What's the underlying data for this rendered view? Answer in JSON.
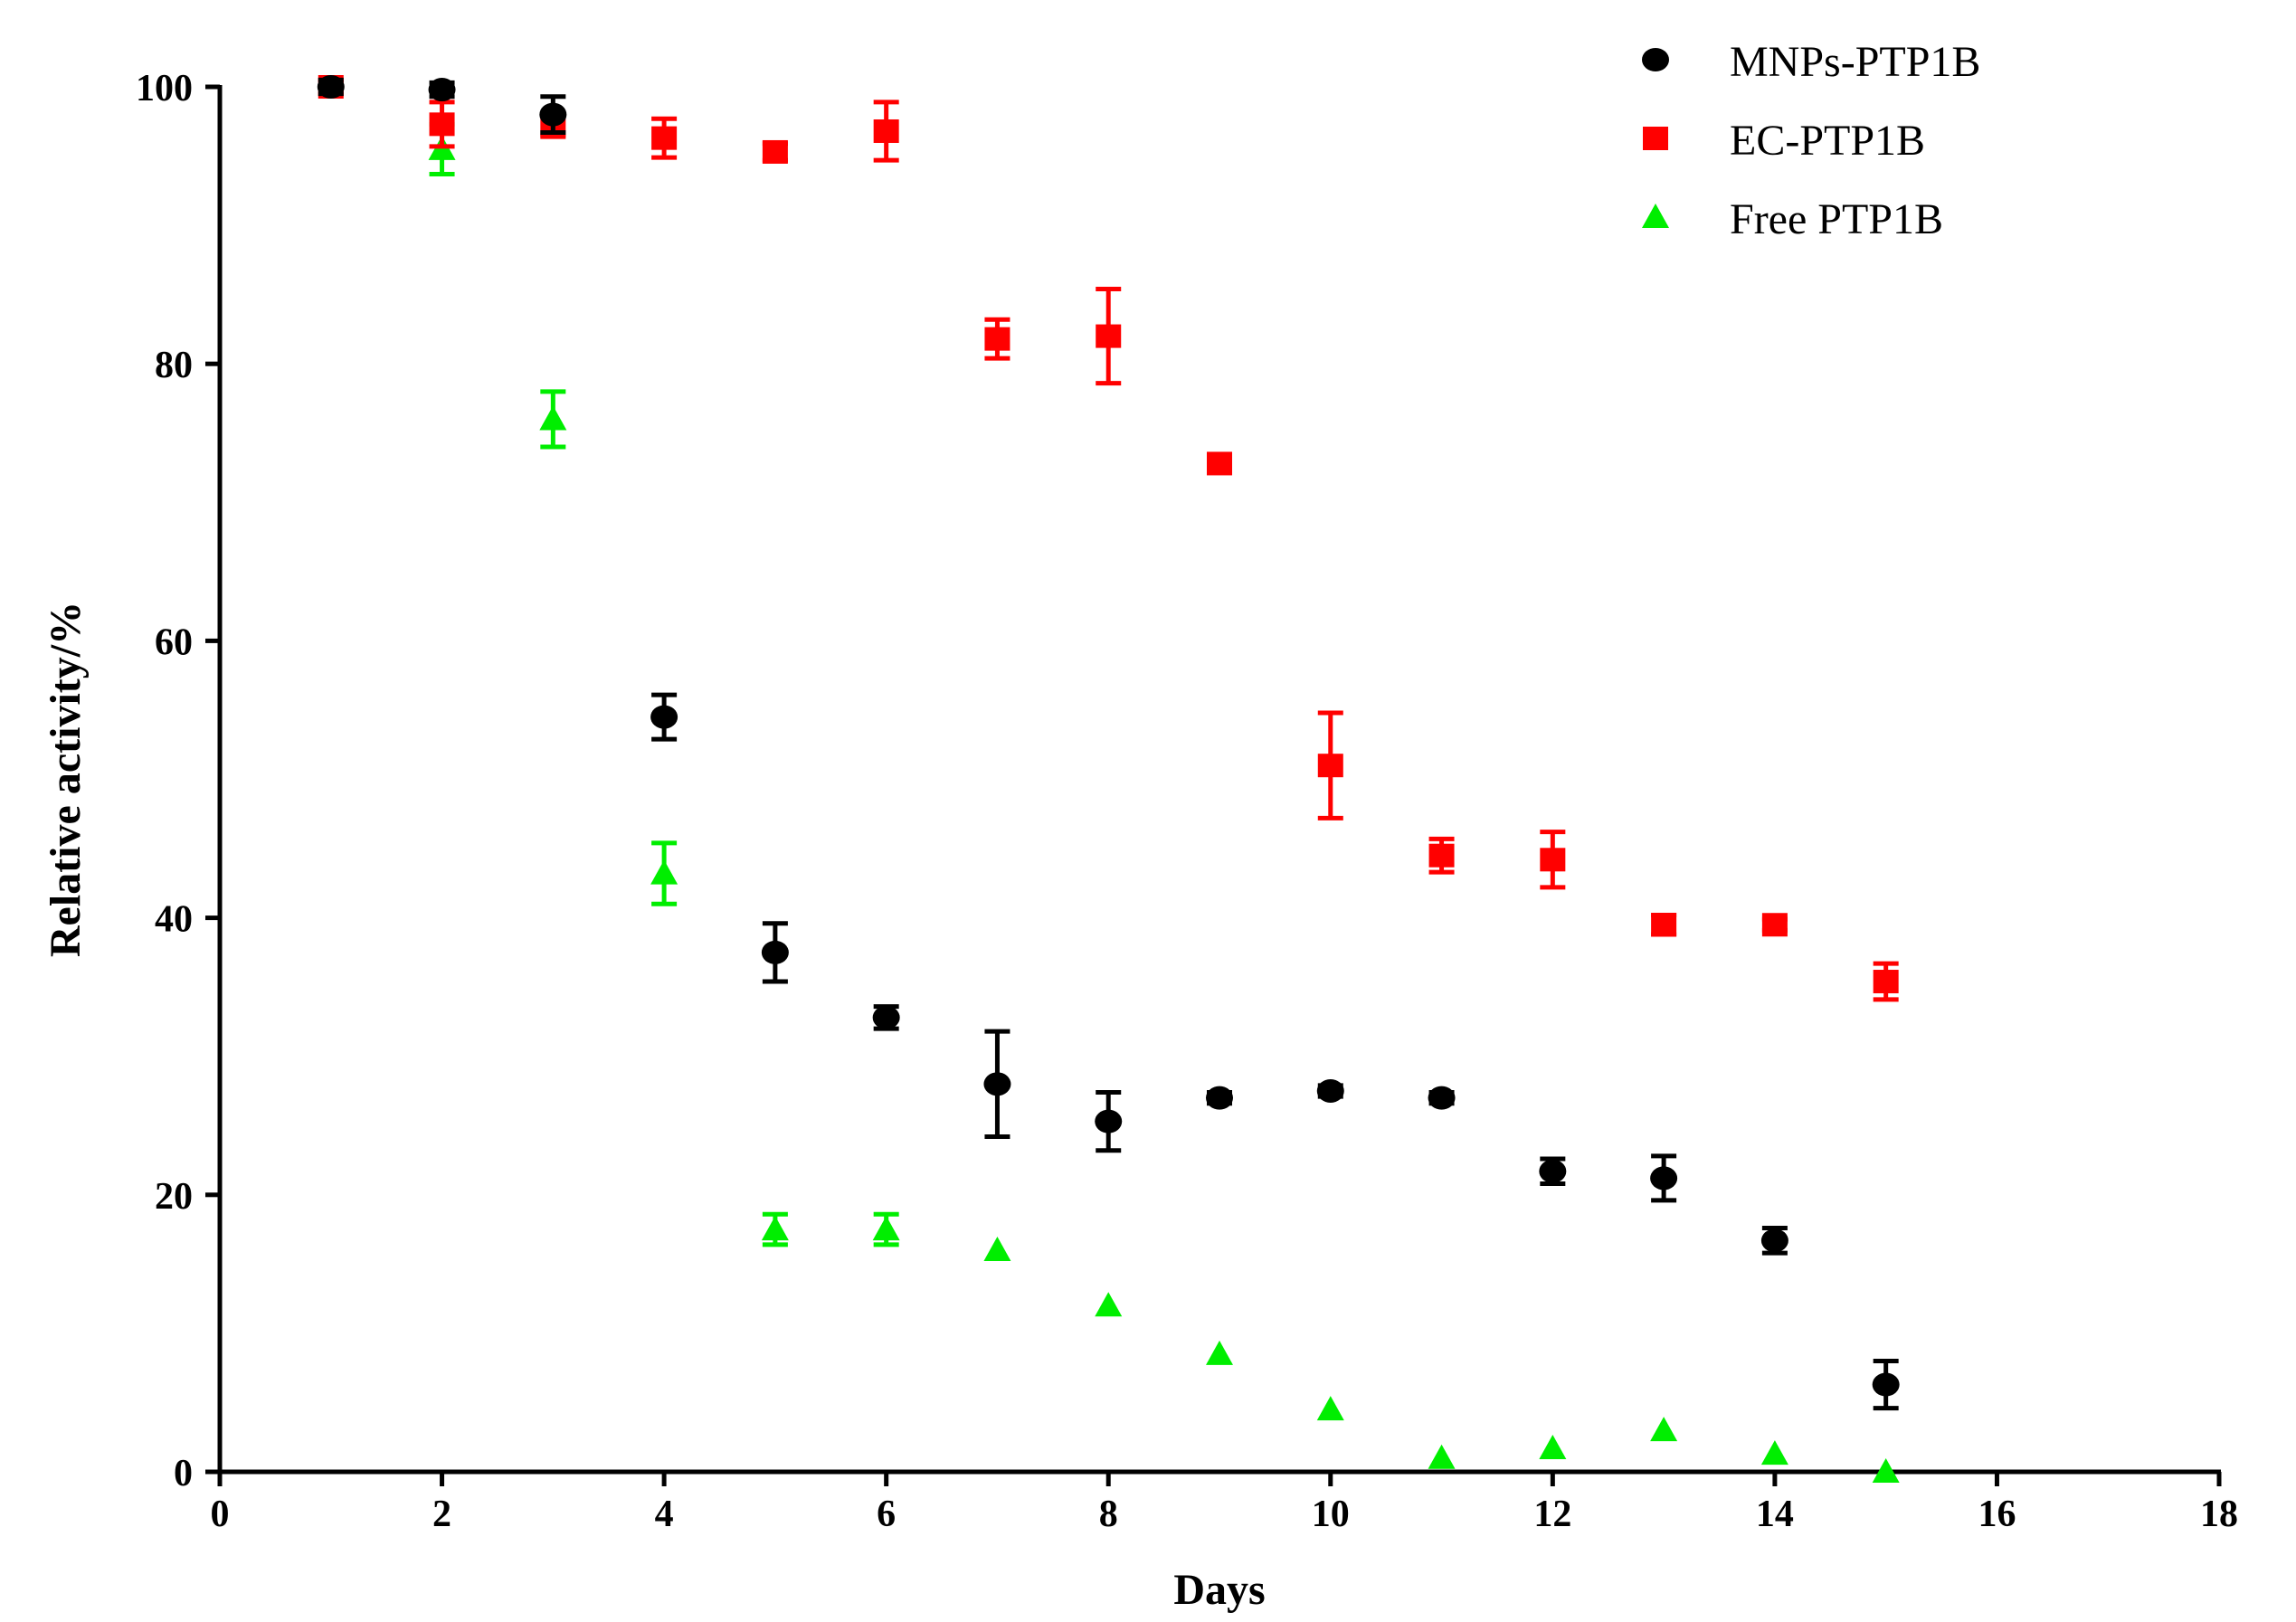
{
  "chart_data": {
    "type": "scatter",
    "title": "",
    "xlabel": "Days",
    "ylabel": "Relative activity/%",
    "xlim": [
      0,
      18
    ],
    "ylim": [
      0,
      100
    ],
    "xticks": [
      0,
      2,
      4,
      6,
      8,
      10,
      12,
      14,
      16,
      18
    ],
    "yticks": [
      0,
      20,
      40,
      60,
      80,
      100
    ],
    "xtick_labels": [
      "0",
      "2",
      "4",
      "6",
      "8",
      "10",
      "12",
      "14",
      "16",
      "18"
    ],
    "ytick_labels": [
      "0",
      "20",
      "40",
      "60",
      "80",
      "100"
    ],
    "grid": false,
    "legend_position": "top-right",
    "series": [
      {
        "name": "MNPs-PTP1B",
        "marker": "circle",
        "color": "#000000",
        "points": [
          {
            "x": 1,
            "y": 100,
            "err": 0.5
          },
          {
            "x": 2,
            "y": 99.8,
            "err": 0.5
          },
          {
            "x": 3,
            "y": 98,
            "err": 1.3
          },
          {
            "x": 4,
            "y": 54.5,
            "err": 1.6
          },
          {
            "x": 5,
            "y": 37.5,
            "err": 2.1
          },
          {
            "x": 6,
            "y": 32.8,
            "err": 0.8
          },
          {
            "x": 7,
            "y": 28,
            "err": 3.8
          },
          {
            "x": 8,
            "y": 25.3,
            "err": 2.1
          },
          {
            "x": 9,
            "y": 27,
            "err": 0.4
          },
          {
            "x": 10,
            "y": 27.5,
            "err": 0.4
          },
          {
            "x": 11,
            "y": 27,
            "err": 0.4
          },
          {
            "x": 12,
            "y": 21.7,
            "err": 0.9
          },
          {
            "x": 13,
            "y": 21.2,
            "err": 1.6
          },
          {
            "x": 14,
            "y": 16.7,
            "err": 0.9
          },
          {
            "x": 15,
            "y": 6.3,
            "err": 1.7
          }
        ]
      },
      {
        "name": "EC-PTP1B",
        "marker": "square",
        "color": "#ff0000",
        "points": [
          {
            "x": 1,
            "y": 100,
            "err": 0.5
          },
          {
            "x": 2,
            "y": 97.3,
            "err": 1.6
          },
          {
            "x": 3,
            "y": 97.2,
            "err": 0.8
          },
          {
            "x": 4,
            "y": 96.3,
            "err": 1.4
          },
          {
            "x": 5,
            "y": 95.3,
            "err": 0.6
          },
          {
            "x": 6,
            "y": 96.8,
            "err": 2.1
          },
          {
            "x": 7,
            "y": 81.8,
            "err": 1.4
          },
          {
            "x": 8,
            "y": 82,
            "err": 3.4
          },
          {
            "x": 9,
            "y": 72.8,
            "err": 0.4
          },
          {
            "x": 10,
            "y": 51,
            "err": 3.8
          },
          {
            "x": 11,
            "y": 44.5,
            "err": 1.2
          },
          {
            "x": 12,
            "y": 44.2,
            "err": 2
          },
          {
            "x": 13,
            "y": 39.5,
            "err": 0.7
          },
          {
            "x": 14,
            "y": 39.5,
            "err": 0.4
          },
          {
            "x": 15,
            "y": 35.4,
            "err": 1.3
          }
        ]
      },
      {
        "name": "Free PTP1B",
        "marker": "triangle",
        "color": "#00ee00",
        "points": [
          {
            "x": 2,
            "y": 95.5,
            "err": 1.8
          },
          {
            "x": 3,
            "y": 76,
            "err": 2
          },
          {
            "x": 4,
            "y": 43.2,
            "err": 2.2
          },
          {
            "x": 5,
            "y": 17.5,
            "err": 1.1
          },
          {
            "x": 6,
            "y": 17.5,
            "err": 1.1
          },
          {
            "x": 7,
            "y": 16,
            "err": 0.3
          },
          {
            "x": 8,
            "y": 12,
            "err": 0.3
          },
          {
            "x": 9,
            "y": 8.5,
            "err": 0.3
          },
          {
            "x": 10,
            "y": 4.5,
            "err": 0.3
          },
          {
            "x": 11,
            "y": 1,
            "err": 0.3
          },
          {
            "x": 12,
            "y": 1.7,
            "err": 0.3
          },
          {
            "x": 13,
            "y": 3,
            "err": 0.3
          },
          {
            "x": 14,
            "y": 1.3,
            "err": 0.3
          },
          {
            "x": 15,
            "y": 0,
            "err": 0.3
          }
        ]
      }
    ]
  }
}
